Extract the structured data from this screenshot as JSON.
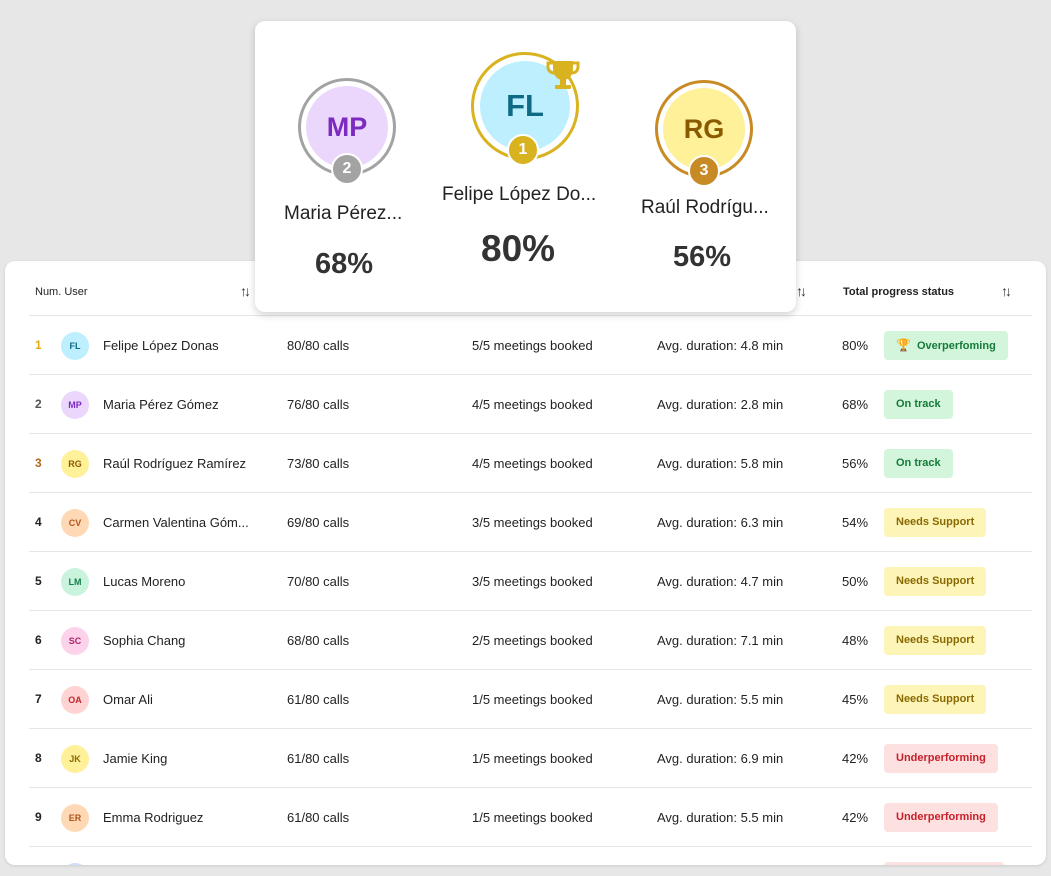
{
  "table": {
    "headers": {
      "num_user": "Num. User",
      "total_progress": "Total progress status"
    },
    "rows": [
      {
        "num": "1",
        "initials": "FL",
        "name": "Felipe López Donas",
        "calls": "80/80 calls",
        "meetings": "5/5 meetings booked",
        "duration": "Avg. duration: 4.8 min",
        "pct": "80%",
        "status": "Overperfoming",
        "status_type": "green",
        "num_color": "#e6a817",
        "avatar_bg": "#bdefff",
        "avatar_fg": "#0f6a85"
      },
      {
        "num": "2",
        "initials": "MP",
        "name": "Maria Pérez Gómez",
        "calls": "76/80 calls",
        "meetings": "4/5 meetings booked",
        "duration": "Avg. duration: 2.8 min",
        "pct": "68%",
        "status": "On track",
        "status_type": "green",
        "num_color": "#555555",
        "avatar_bg": "#ead7fb",
        "avatar_fg": "#7b2bbf"
      },
      {
        "num": "3",
        "initials": "RG",
        "name": "Raúl Rodríguez Ramírez",
        "calls": "73/80 calls",
        "meetings": "4/5 meetings booked",
        "duration": "Avg. duration: 5.8 min",
        "pct": "56%",
        "status": "On track",
        "status_type": "green",
        "num_color": "#b06a1c",
        "avatar_bg": "#fff09a",
        "avatar_fg": "#8a5a00"
      },
      {
        "num": "4",
        "initials": "CV",
        "name": "Carmen Valentina Góm...",
        "calls": "69/80 calls",
        "meetings": "3/5 meetings booked",
        "duration": "Avg. duration: 6.3 min",
        "pct": "54%",
        "status": "Needs Support",
        "status_type": "yellow",
        "num_color": "#222222",
        "avatar_bg": "#ffd9b5",
        "avatar_fg": "#b2541a"
      },
      {
        "num": "5",
        "initials": "LM",
        "name": "Lucas Moreno",
        "calls": "70/80 calls",
        "meetings": "3/5 meetings booked",
        "duration": "Avg. duration: 4.7 min",
        "pct": "50%",
        "status": "Needs Support",
        "status_type": "yellow",
        "num_color": "#222222",
        "avatar_bg": "#c9f3dc",
        "avatar_fg": "#17804a"
      },
      {
        "num": "6",
        "initials": "SC",
        "name": "Sophia Chang",
        "calls": "68/80 calls",
        "meetings": "2/5 meetings booked",
        "duration": "Avg. duration: 7.1 min",
        "pct": "48%",
        "status": "Needs Support",
        "status_type": "yellow",
        "num_color": "#222222",
        "avatar_bg": "#fcd3ea",
        "avatar_fg": "#b0226d"
      },
      {
        "num": "7",
        "initials": "OA",
        "name": "Omar Ali",
        "calls": "61/80 calls",
        "meetings": "1/5 meetings booked",
        "duration": "Avg. duration: 5.5 min",
        "pct": "45%",
        "status": "Needs Support",
        "status_type": "yellow",
        "num_color": "#222222",
        "avatar_bg": "#ffd3d3",
        "avatar_fg": "#c0272d"
      },
      {
        "num": "8",
        "initials": "JK",
        "name": "Jamie King",
        "calls": "61/80 calls",
        "meetings": "1/5 meetings booked",
        "duration": "Avg. duration: 6.9 min",
        "pct": "42%",
        "status": "Underperforming",
        "status_type": "red",
        "num_color": "#222222",
        "avatar_bg": "#fff09a",
        "avatar_fg": "#8a6a00"
      },
      {
        "num": "9",
        "initials": "ER",
        "name": "Emma Rodriguez",
        "calls": "61/80 calls",
        "meetings": "1/5 meetings booked",
        "duration": "Avg. duration: 5.5 min",
        "pct": "42%",
        "status": "Underperforming",
        "status_type": "red",
        "num_color": "#222222",
        "avatar_bg": "#ffd9b5",
        "avatar_fg": "#b2541a"
      }
    ]
  },
  "podium": {
    "first": {
      "initials": "FL",
      "name": "Felipe López Do...",
      "pct": "80%",
      "rank": "1"
    },
    "second": {
      "initials": "MP",
      "name": "Maria Pérez...",
      "pct": "68%",
      "rank": "2"
    },
    "third": {
      "initials": "RG",
      "name": "Raúl Rodrígu...",
      "pct": "56%",
      "rank": "3"
    }
  },
  "colors": {
    "gold": "#d9b21f",
    "silver": "#9a9a9a",
    "bronze": "#c78a25"
  }
}
